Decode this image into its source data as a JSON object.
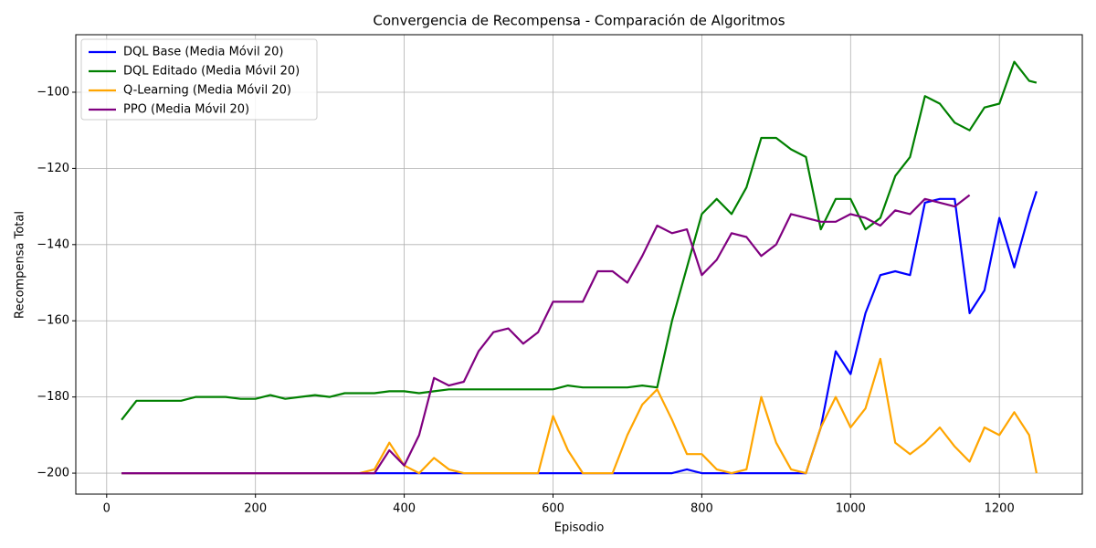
{
  "chart_data": {
    "type": "line",
    "title": "Convergencia de Recompensa - Comparación de Algoritmos",
    "x_label": "Episodio",
    "y_label": "Recompensa Total",
    "x": [
      20,
      40,
      60,
      80,
      100,
      120,
      140,
      160,
      180,
      200,
      220,
      240,
      260,
      280,
      300,
      320,
      340,
      360,
      380,
      400,
      420,
      440,
      460,
      480,
      500,
      520,
      540,
      560,
      580,
      600,
      620,
      640,
      660,
      680,
      700,
      720,
      740,
      760,
      780,
      800,
      820,
      840,
      860,
      880,
      900,
      920,
      940,
      960,
      980,
      1000,
      1020,
      1040,
      1060,
      1080,
      1100,
      1120,
      1140,
      1160,
      1180,
      1200,
      1220,
      1240,
      1250
    ],
    "series": [
      {
        "name": "DQL Base (Media Móvil 20)",
        "color": "#0000ff",
        "values": [
          -200,
          -200,
          -200,
          -200,
          -200,
          -200,
          -200,
          -200,
          -200,
          -200,
          -200,
          -200,
          -200,
          -200,
          -200,
          -200,
          -200,
          -200,
          -200,
          -200,
          -200,
          -200,
          -200,
          -200,
          -200,
          -200,
          -200,
          -200,
          -200,
          -200,
          -200,
          -200,
          -200,
          -200,
          -200,
          -200,
          -200,
          -200,
          -199,
          -200,
          -200,
          -200,
          -200,
          -200,
          -200,
          -200,
          -200,
          -188,
          -168,
          -174,
          -158,
          -148,
          -147,
          -148,
          -129,
          -128,
          -128,
          -158,
          -152,
          -133,
          -146,
          -132,
          -126
        ]
      },
      {
        "name": "DQL Editado (Media Móvil 20)",
        "color": "#008000",
        "values": [
          -186,
          -181,
          -181,
          -181,
          -181,
          -180,
          -180,
          -180,
          -180.5,
          -180.5,
          -179.5,
          -180.5,
          -180,
          -179.5,
          -180,
          -179,
          -179,
          -179,
          -178.5,
          -178.5,
          -179,
          -178.5,
          -178,
          -178,
          -178,
          -178,
          -178,
          -178,
          -178,
          -178,
          -177,
          -177.5,
          -177.5,
          -177.5,
          -177.5,
          -177,
          -177.5,
          -160,
          -146,
          -132,
          -128,
          -132,
          -125,
          -112,
          -112,
          -115,
          -117,
          -136,
          -128,
          -128,
          -136,
          -133,
          -122,
          -117,
          -101,
          -103,
          -108,
          -110,
          -104,
          -103,
          -92,
          -97,
          -97.5
        ]
      },
      {
        "name": "Q-Learning (Media Móvil 20)",
        "color": "#ffa500",
        "values": [
          -200,
          -200,
          -200,
          -200,
          -200,
          -200,
          -200,
          -200,
          -200,
          -200,
          -200,
          -200,
          -200,
          -200,
          -200,
          -200,
          -200,
          -199,
          -192,
          -198,
          -200,
          -196,
          -199,
          -200,
          -200,
          -200,
          -200,
          -200,
          -200,
          -185,
          -194,
          -200,
          -200,
          -200,
          -190,
          -182,
          -178,
          -186,
          -195,
          -195,
          -199,
          -200,
          -199,
          -180,
          -192,
          -199,
          -200,
          -188,
          -180,
          -188,
          -183,
          -170,
          -192,
          -195,
          -192,
          -188,
          -193,
          -197,
          -188,
          -190,
          -184,
          -190,
          -200
        ]
      },
      {
        "name": "PPO (Media Móvil 20)",
        "color": "#800080",
        "values": [
          -200,
          -200,
          -200,
          -200,
          -200,
          -200,
          -200,
          -200,
          -200,
          -200,
          -200,
          -200,
          -200,
          -200,
          -200,
          -200,
          -200,
          -200,
          -194,
          -198,
          -190,
          -175,
          -177,
          -176,
          -168,
          -163,
          -162,
          -166,
          -163,
          -155,
          -155,
          -155,
          -147,
          -147,
          -150,
          -143,
          -135,
          -137,
          -136,
          -148,
          -144,
          -137,
          -138,
          -143,
          -140,
          -132,
          -133,
          -134,
          -134,
          -132,
          -133,
          -135,
          -131,
          -132,
          -128,
          -129,
          -130,
          -127,
          null,
          null,
          null,
          null,
          null
        ]
      }
    ],
    "xlim": [
      -41.5,
      1311.5
    ],
    "ylim": [
      -205.5,
      -84.9
    ],
    "xticks": [
      0,
      200,
      400,
      600,
      800,
      1000,
      1200
    ],
    "yticks": [
      {
        "value": -200,
        "label": "−200"
      },
      {
        "value": -180,
        "label": "−180"
      },
      {
        "value": -160,
        "label": "−160"
      },
      {
        "value": -140,
        "label": "−140"
      },
      {
        "value": -120,
        "label": "−120"
      },
      {
        "value": -100,
        "label": "−100"
      }
    ],
    "grid": true,
    "legend": "upper left"
  }
}
